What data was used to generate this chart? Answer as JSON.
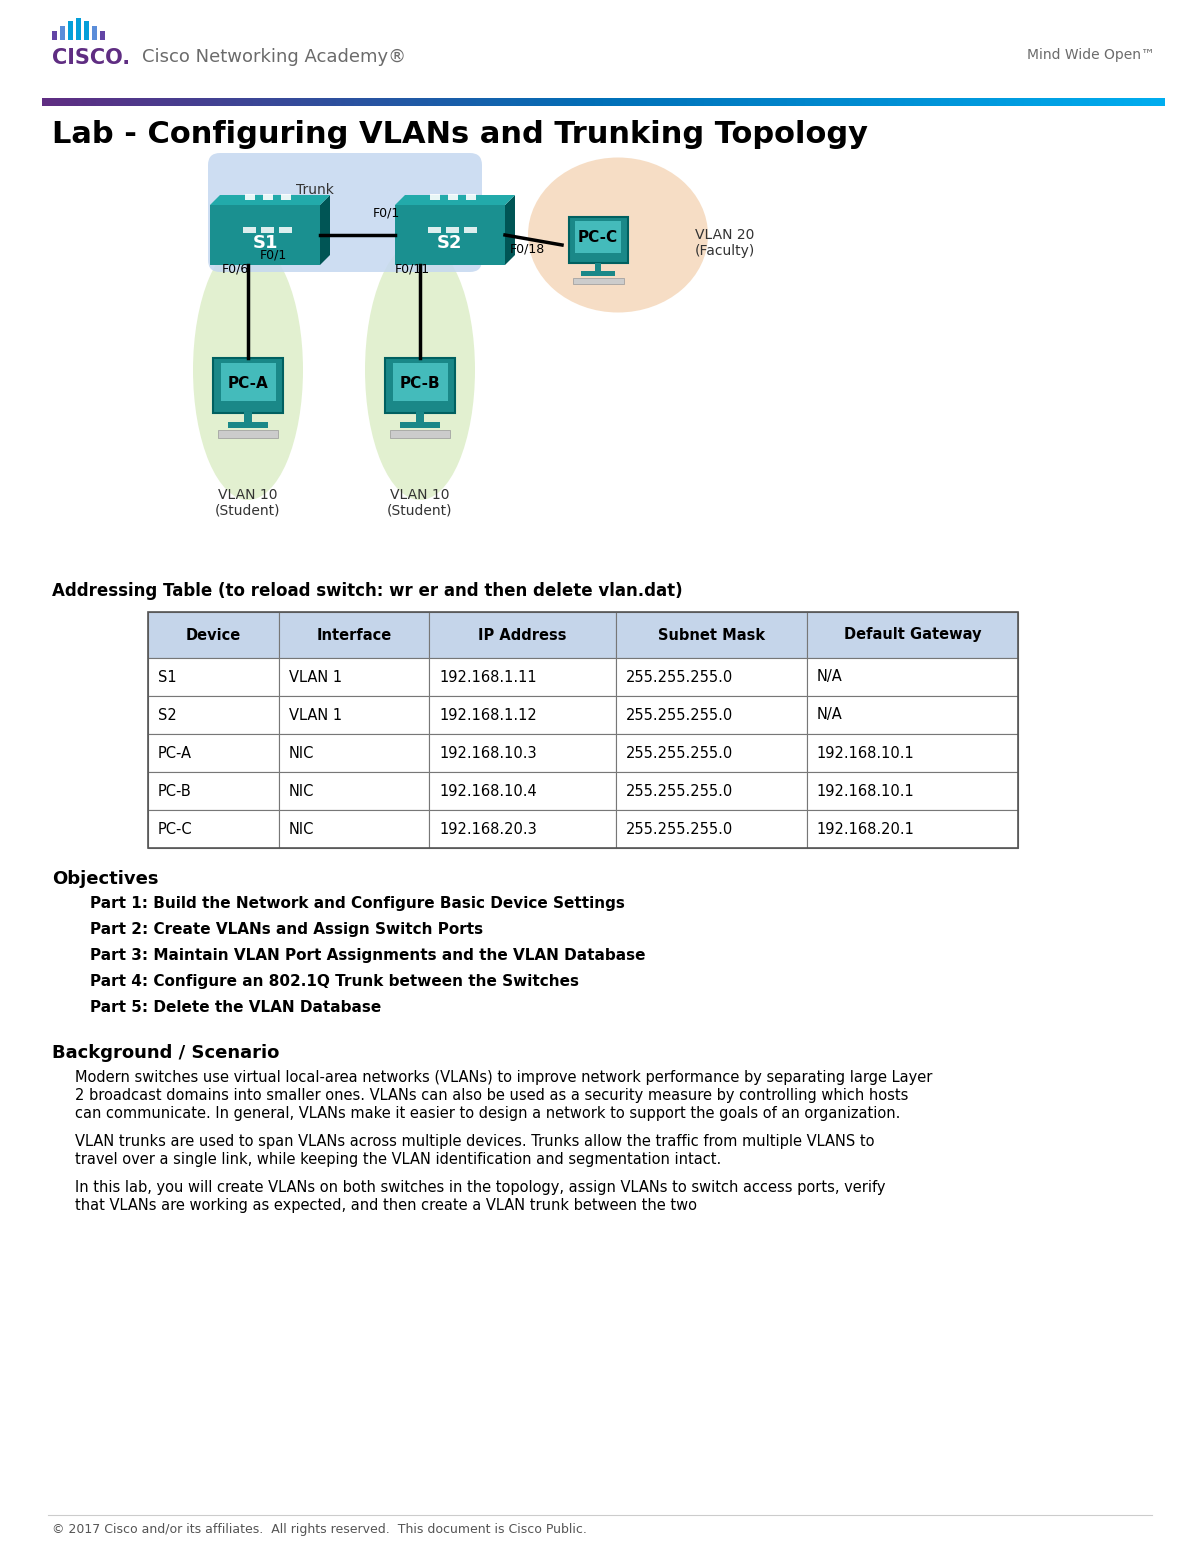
{
  "title": "Lab - Configuring VLANs and Trunking Topology",
  "header_cisco_text": "Cisco Networking Academy®",
  "header_right_text": "Mind Wide Open™",
  "switch_color": "#1a9090",
  "switch_label_s1": "S1",
  "switch_label_s2": "S2",
  "pc_color": "#1a8888",
  "pc_label_pca": "PC-A",
  "pc_label_pcb": "PC-B",
  "pc_label_pcc": "PC-C",
  "trunk_bubble_color": "#c5d8f0",
  "trunk_label": "Trunk",
  "vlan10_bubble_color": "#ddeec8",
  "vlan20_bubble_color": "#f5d8bb",
  "vlan10_label1": "VLAN 10",
  "vlan10_sub1": "(Student)",
  "vlan10_label2": "VLAN 10",
  "vlan10_sub2": "(Student)",
  "vlan20_label": "VLAN 20",
  "vlan20_sub": "(Faculty)",
  "port_f01_s1": "F0/1",
  "port_f01_s2": "F0/1",
  "port_f06": "F0/6",
  "port_f011": "F0/11",
  "port_f018": "F0/18",
  "addr_table_title": "Addressing Table (to reload switch: wr er and then delete vlan.dat)",
  "table_headers": [
    "Device",
    "Interface",
    "IP Address",
    "Subnet Mask",
    "Default Gateway"
  ],
  "table_header_bg": "#c5d5ea",
  "table_rows": [
    [
      "S1",
      "VLAN 1",
      "192.168.1.11",
      "255.255.255.0",
      "N/A"
    ],
    [
      "S2",
      "VLAN 1",
      "192.168.1.12",
      "255.255.255.0",
      "N/A"
    ],
    [
      "PC-A",
      "NIC",
      "192.168.10.3",
      "255.255.255.0",
      "192.168.10.1"
    ],
    [
      "PC-B",
      "NIC",
      "192.168.10.4",
      "255.255.255.0",
      "192.168.10.1"
    ],
    [
      "PC-C",
      "NIC",
      "192.168.20.3",
      "255.255.255.0",
      "192.168.20.1"
    ]
  ],
  "objectives_title": "Objectives",
  "objectives": [
    "Part 1: Build the Network and Configure Basic Device Settings",
    "Part 2: Create VLANs and Assign Switch Ports",
    "Part 3: Maintain VLAN Port Assignments and the VLAN Database",
    "Part 4: Configure an 802.1Q Trunk between the Switches",
    "Part 5: Delete the VLAN Database"
  ],
  "background_title": "Background / Scenario",
  "background_text1": "Modern switches use virtual local-area networks (VLANs) to improve network performance by separating large Layer 2 broadcast domains into smaller ones. VLANs can also be used as a security measure by controlling which hosts can communicate. In general, VLANs make it easier to design a network to support the goals of an organization.",
  "background_text2": "VLAN trunks are used to span VLANs across multiple devices. Trunks allow the traffic from multiple VLANS to travel over a single link, while keeping the VLAN identification and segmentation intact.",
  "background_text3": "In this lab, you will create VLANs on both switches in the topology, assign VLANs to switch access ports, verify that VLANs are working as expected, and then create a VLAN trunk between the two",
  "footer_text": "© 2017 Cisco and/or its affiliates.  All rights reserved.  This document is Cisco Public.",
  "bg_color": "#ffffff",
  "cisco_bar_color": "#5f2d82",
  "cisco_blue": "#049fd9",
  "cisco_text_color": "#6b6b6b"
}
